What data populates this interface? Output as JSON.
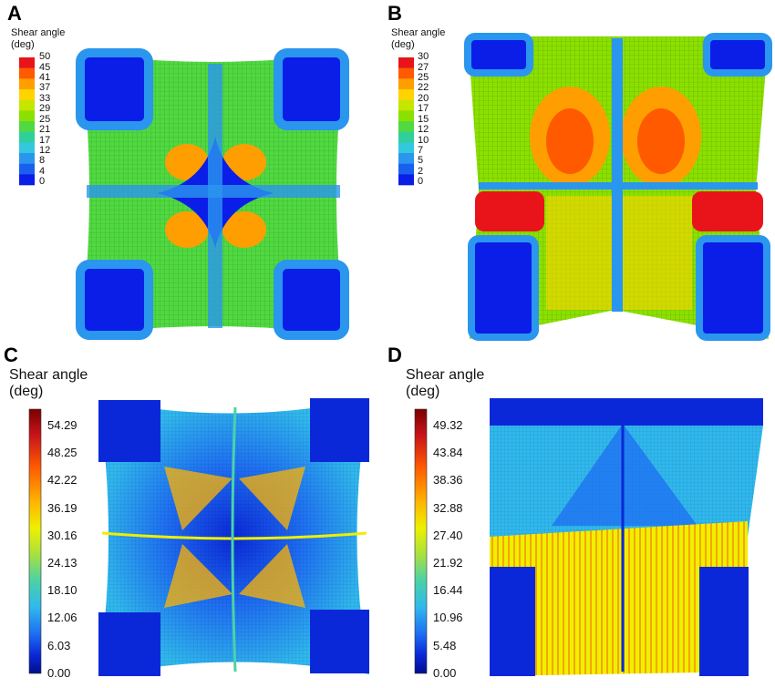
{
  "panels": [
    {
      "label": "A",
      "legend_title": [
        "Shear angle",
        "(deg)"
      ],
      "ticks": [
        "50",
        "45",
        "41",
        "37",
        "33",
        "29",
        "25",
        "21",
        "17",
        "12",
        "8",
        "4",
        "0"
      ]
    },
    {
      "label": "B",
      "legend_title": [
        "Shear angle",
        "(deg)"
      ],
      "ticks": [
        "30",
        "27",
        "25",
        "22",
        "20",
        "17",
        "15",
        "12",
        "10",
        "7",
        "5",
        "2",
        "0"
      ]
    },
    {
      "label": "C",
      "legend_title": [
        "Shear angle",
        "(deg)"
      ],
      "ticks": [
        "54.29",
        "48.25",
        "42.22",
        "36.19",
        "30.16",
        "24.13",
        "18.10",
        "12.06",
        "6.03",
        "0.00"
      ]
    },
    {
      "label": "D",
      "legend_title": [
        "Shear angle",
        "(deg)"
      ],
      "ticks": [
        "49.32",
        "43.84",
        "38.36",
        "32.88",
        "27.40",
        "21.92",
        "16.44",
        "10.96",
        "5.48",
        "0.00"
      ]
    }
  ],
  "colors": {
    "discrete": [
      "#e8141a",
      "#ff5a00",
      "#ff9e00",
      "#ffd400",
      "#c6e600",
      "#8be000",
      "#50d940",
      "#2fd09a",
      "#33c8dd",
      "#2a96ee",
      "#1a5ff0",
      "#0a1ee8"
    ],
    "continuous": [
      "#7a0000",
      "#c8141a",
      "#ff5a00",
      "#ffb400",
      "#eef000",
      "#a8e040",
      "#4ad2a8",
      "#30b8ee",
      "#1e6ef2",
      "#0a28d8",
      "#000d8c"
    ]
  }
}
